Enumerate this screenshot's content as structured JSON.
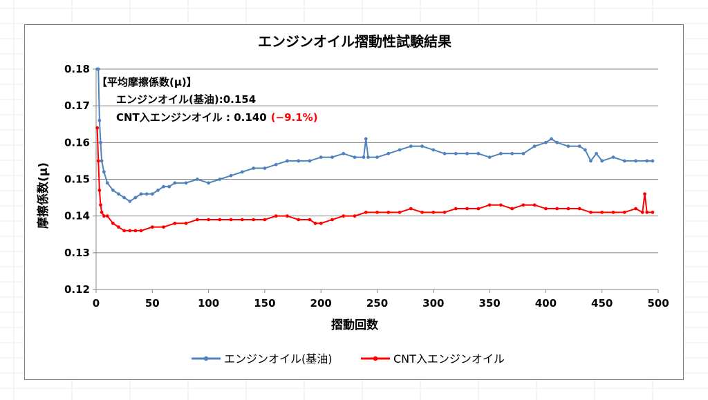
{
  "chart_data": {
    "type": "line",
    "title": "エンジンオイル摺動性試験結果",
    "xlabel": "摺動回数",
    "ylabel": "摩擦係数(μ)",
    "xlim": [
      0,
      500
    ],
    "ylim": [
      0.12,
      0.18
    ],
    "xticks": [
      0,
      50,
      100,
      150,
      200,
      250,
      300,
      350,
      400,
      450,
      500
    ],
    "yticks": [
      0.12,
      0.13,
      0.14,
      0.15,
      0.16,
      0.17,
      0.18
    ],
    "xtick_labels": [
      "0",
      "50",
      "100",
      "150",
      "200",
      "250",
      "300",
      "350",
      "400",
      "450",
      "500"
    ],
    "ytick_labels": [
      "0.12",
      "0.13",
      "0.14",
      "0.15",
      "0.16",
      "0.17",
      "0.18"
    ],
    "grid": "horizontal",
    "legend_position": "bottom",
    "series": [
      {
        "name": "エンジンオイル(基油)",
        "color": "#4f81bd",
        "x": [
          1,
          2,
          3,
          4,
          5,
          7,
          10,
          15,
          20,
          25,
          30,
          35,
          40,
          45,
          50,
          55,
          60,
          65,
          70,
          80,
          90,
          100,
          110,
          120,
          130,
          140,
          150,
          160,
          170,
          180,
          190,
          200,
          210,
          220,
          230,
          238,
          240,
          242,
          250,
          260,
          270,
          280,
          290,
          300,
          310,
          320,
          330,
          340,
          350,
          360,
          370,
          380,
          390,
          400,
          405,
          410,
          420,
          430,
          435,
          440,
          445,
          450,
          460,
          470,
          480,
          490,
          495
        ],
        "y": [
          0.18,
          0.18,
          0.166,
          0.16,
          0.155,
          0.152,
          0.149,
          0.147,
          0.146,
          0.145,
          0.144,
          0.145,
          0.146,
          0.146,
          0.146,
          0.147,
          0.148,
          0.148,
          0.149,
          0.149,
          0.15,
          0.149,
          0.15,
          0.151,
          0.152,
          0.153,
          0.153,
          0.154,
          0.155,
          0.155,
          0.155,
          0.156,
          0.156,
          0.157,
          0.156,
          0.156,
          0.161,
          0.156,
          0.156,
          0.157,
          0.158,
          0.159,
          0.159,
          0.158,
          0.157,
          0.157,
          0.157,
          0.157,
          0.156,
          0.157,
          0.157,
          0.157,
          0.159,
          0.16,
          0.161,
          0.16,
          0.159,
          0.159,
          0.158,
          0.155,
          0.157,
          0.155,
          0.156,
          0.155,
          0.155,
          0.155,
          0.155
        ]
      },
      {
        "name": "CNT入エンジンオイル",
        "color": "#ff0000",
        "x": [
          1,
          2,
          3,
          4,
          5,
          7,
          10,
          15,
          20,
          25,
          30,
          35,
          40,
          50,
          60,
          70,
          80,
          90,
          100,
          110,
          120,
          130,
          140,
          150,
          160,
          170,
          180,
          190,
          195,
          200,
          210,
          220,
          230,
          240,
          250,
          260,
          270,
          280,
          290,
          300,
          310,
          320,
          330,
          340,
          350,
          360,
          370,
          380,
          390,
          400,
          410,
          420,
          430,
          440,
          450,
          460,
          470,
          480,
          486,
          488,
          490,
          495
        ],
        "y": [
          0.164,
          0.155,
          0.147,
          0.143,
          0.141,
          0.14,
          0.14,
          0.138,
          0.137,
          0.136,
          0.136,
          0.136,
          0.136,
          0.137,
          0.137,
          0.138,
          0.138,
          0.139,
          0.139,
          0.139,
          0.139,
          0.139,
          0.139,
          0.139,
          0.14,
          0.14,
          0.139,
          0.139,
          0.138,
          0.138,
          0.139,
          0.14,
          0.14,
          0.141,
          0.141,
          0.141,
          0.141,
          0.142,
          0.141,
          0.141,
          0.141,
          0.142,
          0.142,
          0.142,
          0.143,
          0.143,
          0.142,
          0.143,
          0.143,
          0.142,
          0.142,
          0.142,
          0.142,
          0.141,
          0.141,
          0.141,
          0.141,
          0.142,
          0.141,
          0.146,
          0.141,
          0.141
        ]
      }
    ],
    "annotation": {
      "heading": "【平均摩擦係数(μ)】",
      "line1": "エンジンオイル(基油):0.154",
      "line2": "CNT入エンジンオイル : 0.140",
      "line2_red": "(−9.1%)",
      "red_color": "#ff0000"
    }
  }
}
